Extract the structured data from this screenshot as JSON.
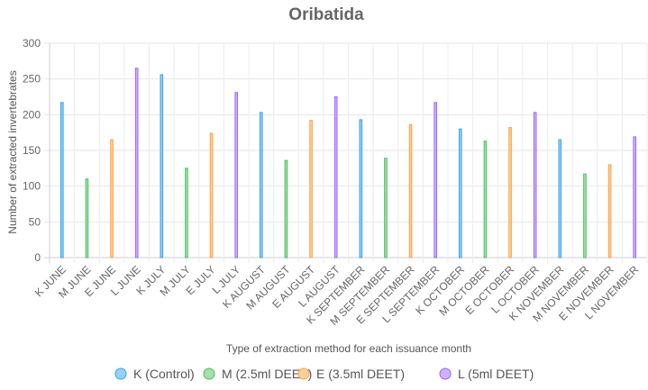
{
  "chart_data": {
    "type": "bar",
    "title": "Oribatida",
    "xlabel": "Type of extraction method for each issuance month",
    "ylabel": "Number of extracted invertebrates",
    "ylim": [
      0,
      300
    ],
    "yticks": [
      0,
      50,
      100,
      150,
      200,
      250,
      300
    ],
    "grid": true,
    "legend_position": "bottom",
    "categories": [
      "K JUNE",
      "M JUNE",
      "E JUNE",
      "L JUNE",
      "K JULY",
      "M JULY",
      "E JULY",
      "L JULY",
      "K AUGUST",
      "M AUGUST",
      "E AUGUST",
      "L AUGUST",
      "K SEPTEMBER",
      "M SEPTEMBER",
      "E SEPTEMBER",
      "L SEPTEMBER",
      "K OCTOBER",
      "M OCTOBER",
      "E OCTOBER",
      "L OCTOBER",
      "K NOVEMBER",
      "M NOVEMBER",
      "E NOVEMBER",
      "L NOVEMBER"
    ],
    "series": [
      {
        "name": "K (Control)",
        "color": "#36A2EB",
        "fill": "#9AD0F5",
        "values": [
          217,
          null,
          null,
          null,
          256,
          null,
          null,
          null,
          203,
          null,
          null,
          null,
          193,
          null,
          null,
          null,
          180,
          null,
          null,
          null,
          165,
          null,
          null,
          null
        ]
      },
      {
        "name": "M (2.5ml DEET)",
        "color": "#4BC05A",
        "fill": "#A5DFAD",
        "values": [
          null,
          110,
          null,
          null,
          null,
          125,
          null,
          null,
          null,
          136,
          null,
          null,
          null,
          139,
          null,
          null,
          null,
          163,
          null,
          null,
          null,
          117,
          null,
          null
        ]
      },
      {
        "name": "E (3.5ml DEET)",
        "color": "#FF9F40",
        "fill": "#FFCF9F",
        "values": [
          null,
          null,
          165,
          null,
          null,
          null,
          174,
          null,
          null,
          null,
          192,
          null,
          null,
          null,
          186,
          null,
          null,
          null,
          182,
          null,
          null,
          null,
          130,
          null
        ]
      },
      {
        "name": "L (5ml DEET)",
        "color": "#9966FF",
        "fill": "#CCB2FF",
        "values": [
          null,
          null,
          null,
          265,
          null,
          null,
          null,
          231,
          null,
          null,
          null,
          225,
          null,
          null,
          null,
          217,
          null,
          null,
          null,
          203,
          null,
          null,
          null,
          169
        ]
      }
    ]
  }
}
